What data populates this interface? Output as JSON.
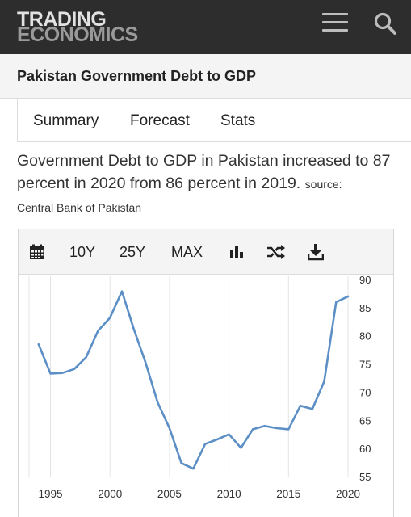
{
  "header": {
    "logo_line1": "TRADING",
    "logo_line2": "ECONOMICS",
    "menu_icon": "hamburger-menu-icon",
    "search_icon": "search-icon"
  },
  "title": "Pakistan Government Debt to GDP",
  "tabs": [
    {
      "label": "Summary"
    },
    {
      "label": "Forecast"
    },
    {
      "label": "Stats"
    }
  ],
  "description": {
    "text": "Government Debt to GDP in Pakistan increased to 87 percent in 2020 from 86 percent in 2019.",
    "source_label": "source:",
    "source_name": "Central Bank of Pakistan"
  },
  "toolbar": {
    "calendar_icon": "calendar-icon",
    "range_10y": "10Y",
    "range_25y": "25Y",
    "range_max": "MAX",
    "chart_type_icon": "bar-chart-icon",
    "compare_icon": "shuffle-icon",
    "download_icon": "download-icon"
  },
  "colors": {
    "line": "#5b8fc5",
    "header_bg": "#2d2d2d",
    "grid": "#e4e4e4"
  },
  "chart_data": {
    "type": "line",
    "title": "",
    "xlabel": "",
    "ylabel": "",
    "x": [
      1994,
      1995,
      1996,
      1997,
      1998,
      1999,
      2000,
      2001,
      2002,
      2003,
      2004,
      2005,
      2006,
      2007,
      2008,
      2009,
      2010,
      2011,
      2012,
      2013,
      2014,
      2015,
      2016,
      2017,
      2018,
      2019,
      2020
    ],
    "series": [
      {
        "values": [
          78.5,
          73.3,
          73.4,
          74.1,
          76.2,
          80.9,
          83.2,
          87.9,
          81.2,
          75.2,
          68.2,
          63.6,
          57.4,
          56.4,
          60.8,
          61.6,
          62.5,
          60.1,
          63.4,
          64.0,
          63.6,
          63.4,
          67.6,
          67.0,
          71.9,
          86.0,
          87.0
        ]
      }
    ],
    "xticks": [
      "1995",
      "2000",
      "2005",
      "2010",
      "2015",
      "2020"
    ],
    "yticks": [
      "55",
      "60",
      "65",
      "70",
      "75",
      "80",
      "85",
      "90"
    ],
    "ylim": [
      55,
      90
    ],
    "xlim": [
      1993.2,
      2020
    ],
    "grid": "vertical",
    "y_axis_side": "right"
  }
}
